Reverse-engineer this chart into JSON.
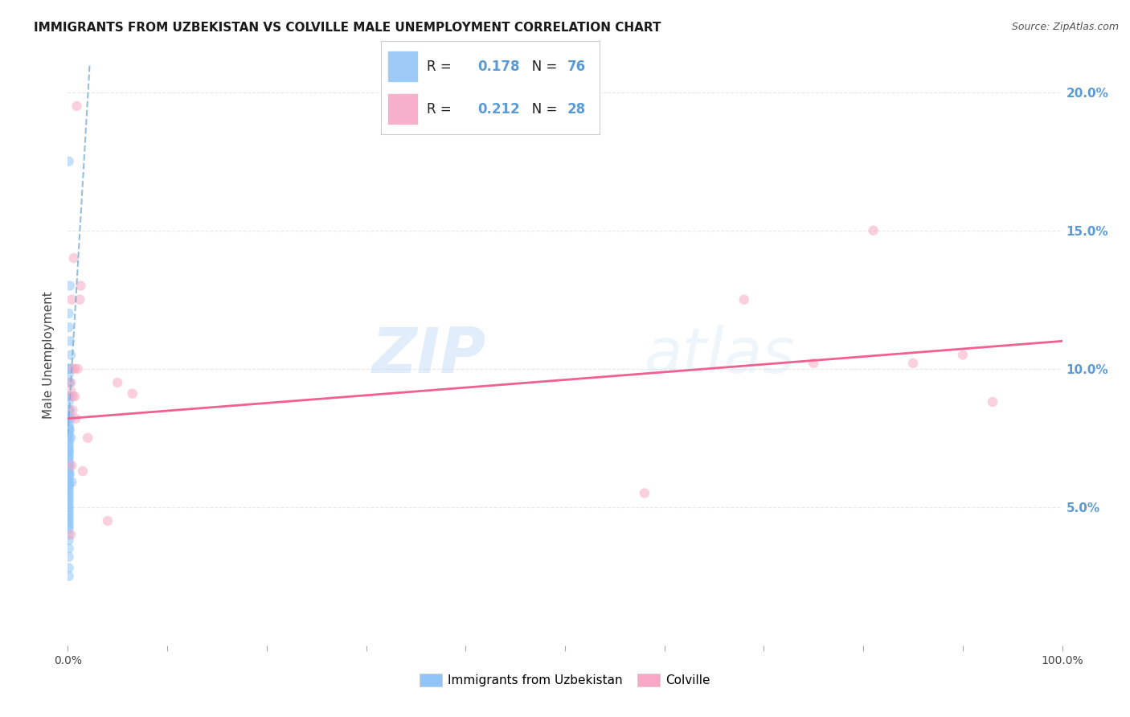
{
  "title": "IMMIGRANTS FROM UZBEKISTAN VS COLVILLE MALE UNEMPLOYMENT CORRELATION CHART",
  "source": "Source: ZipAtlas.com",
  "ylabel": "Male Unemployment",
  "background_color": "#ffffff",
  "watermark": "ZIPatlas",
  "legend": {
    "blue_r": "0.178",
    "blue_n": "76",
    "pink_r": "0.212",
    "pink_n": "28"
  },
  "blue_scatter_x": [
    0.001,
    0.002,
    0.001,
    0.001,
    0.002,
    0.003,
    0.001,
    0.001,
    0.002,
    0.001,
    0.001,
    0.001,
    0.002,
    0.001,
    0.001,
    0.002,
    0.001,
    0.001,
    0.001,
    0.002,
    0.001,
    0.001,
    0.003,
    0.001,
    0.001,
    0.001,
    0.002,
    0.001,
    0.001,
    0.003,
    0.001,
    0.001,
    0.001,
    0.001,
    0.001,
    0.001,
    0.001,
    0.001,
    0.001,
    0.001,
    0.001,
    0.001,
    0.001,
    0.002,
    0.001,
    0.001,
    0.001,
    0.002,
    0.001,
    0.001,
    0.001,
    0.004,
    0.001,
    0.001,
    0.001,
    0.001,
    0.001,
    0.001,
    0.001,
    0.001,
    0.001,
    0.001,
    0.001,
    0.001,
    0.001,
    0.001,
    0.001,
    0.001,
    0.001,
    0.001,
    0.001,
    0.001,
    0.001,
    0.001,
    0.001,
    0.001
  ],
  "blue_scatter_y": [
    0.175,
    0.13,
    0.12,
    0.115,
    0.11,
    0.105,
    0.1,
    0.1,
    0.1,
    0.1,
    0.098,
    0.095,
    0.095,
    0.09,
    0.09,
    0.09,
    0.088,
    0.085,
    0.085,
    0.085,
    0.083,
    0.082,
    0.082,
    0.08,
    0.079,
    0.078,
    0.078,
    0.077,
    0.076,
    0.075,
    0.075,
    0.074,
    0.073,
    0.072,
    0.071,
    0.07,
    0.07,
    0.069,
    0.068,
    0.067,
    0.066,
    0.065,
    0.065,
    0.065,
    0.064,
    0.063,
    0.062,
    0.062,
    0.061,
    0.06,
    0.059,
    0.059,
    0.058,
    0.058,
    0.057,
    0.056,
    0.055,
    0.054,
    0.053,
    0.052,
    0.051,
    0.05,
    0.049,
    0.048,
    0.047,
    0.046,
    0.045,
    0.044,
    0.043,
    0.042,
    0.04,
    0.038,
    0.035,
    0.032,
    0.028,
    0.025
  ],
  "pink_scatter_x": [
    0.009,
    0.012,
    0.004,
    0.007,
    0.005,
    0.003,
    0.003,
    0.005,
    0.007,
    0.005,
    0.008,
    0.01,
    0.013,
    0.006,
    0.02,
    0.05,
    0.065,
    0.58,
    0.68,
    0.75,
    0.81,
    0.85,
    0.9,
    0.93,
    0.003,
    0.004,
    0.04,
    0.015
  ],
  "pink_scatter_y": [
    0.195,
    0.125,
    0.125,
    0.1,
    0.1,
    0.095,
    0.092,
    0.09,
    0.09,
    0.085,
    0.082,
    0.1,
    0.13,
    0.14,
    0.075,
    0.095,
    0.091,
    0.055,
    0.125,
    0.102,
    0.15,
    0.102,
    0.105,
    0.088,
    0.04,
    0.065,
    0.045,
    0.063
  ],
  "blue_line_x": [
    0.0,
    0.022
  ],
  "blue_line_y": [
    0.076,
    0.21
  ],
  "pink_line_x": [
    0.0,
    1.0
  ],
  "pink_line_y": [
    0.082,
    0.11
  ],
  "xlim": [
    0.0,
    1.0
  ],
  "ylim": [
    0.0,
    0.21
  ],
  "ytick_positions": [
    0.05,
    0.1,
    0.15,
    0.2
  ],
  "ytick_labels": [
    "5.0%",
    "10.0%",
    "15.0%",
    "20.0%"
  ],
  "blue_color": "#92c5f7",
  "pink_color": "#f7a8c4",
  "blue_line_color": "#7bafd4",
  "pink_line_color": "#f06090",
  "grid_color": "#e8e8e8",
  "marker_size": 80,
  "marker_alpha": 0.55,
  "title_fontsize": 11,
  "right_label_color": "#5b9bd5"
}
